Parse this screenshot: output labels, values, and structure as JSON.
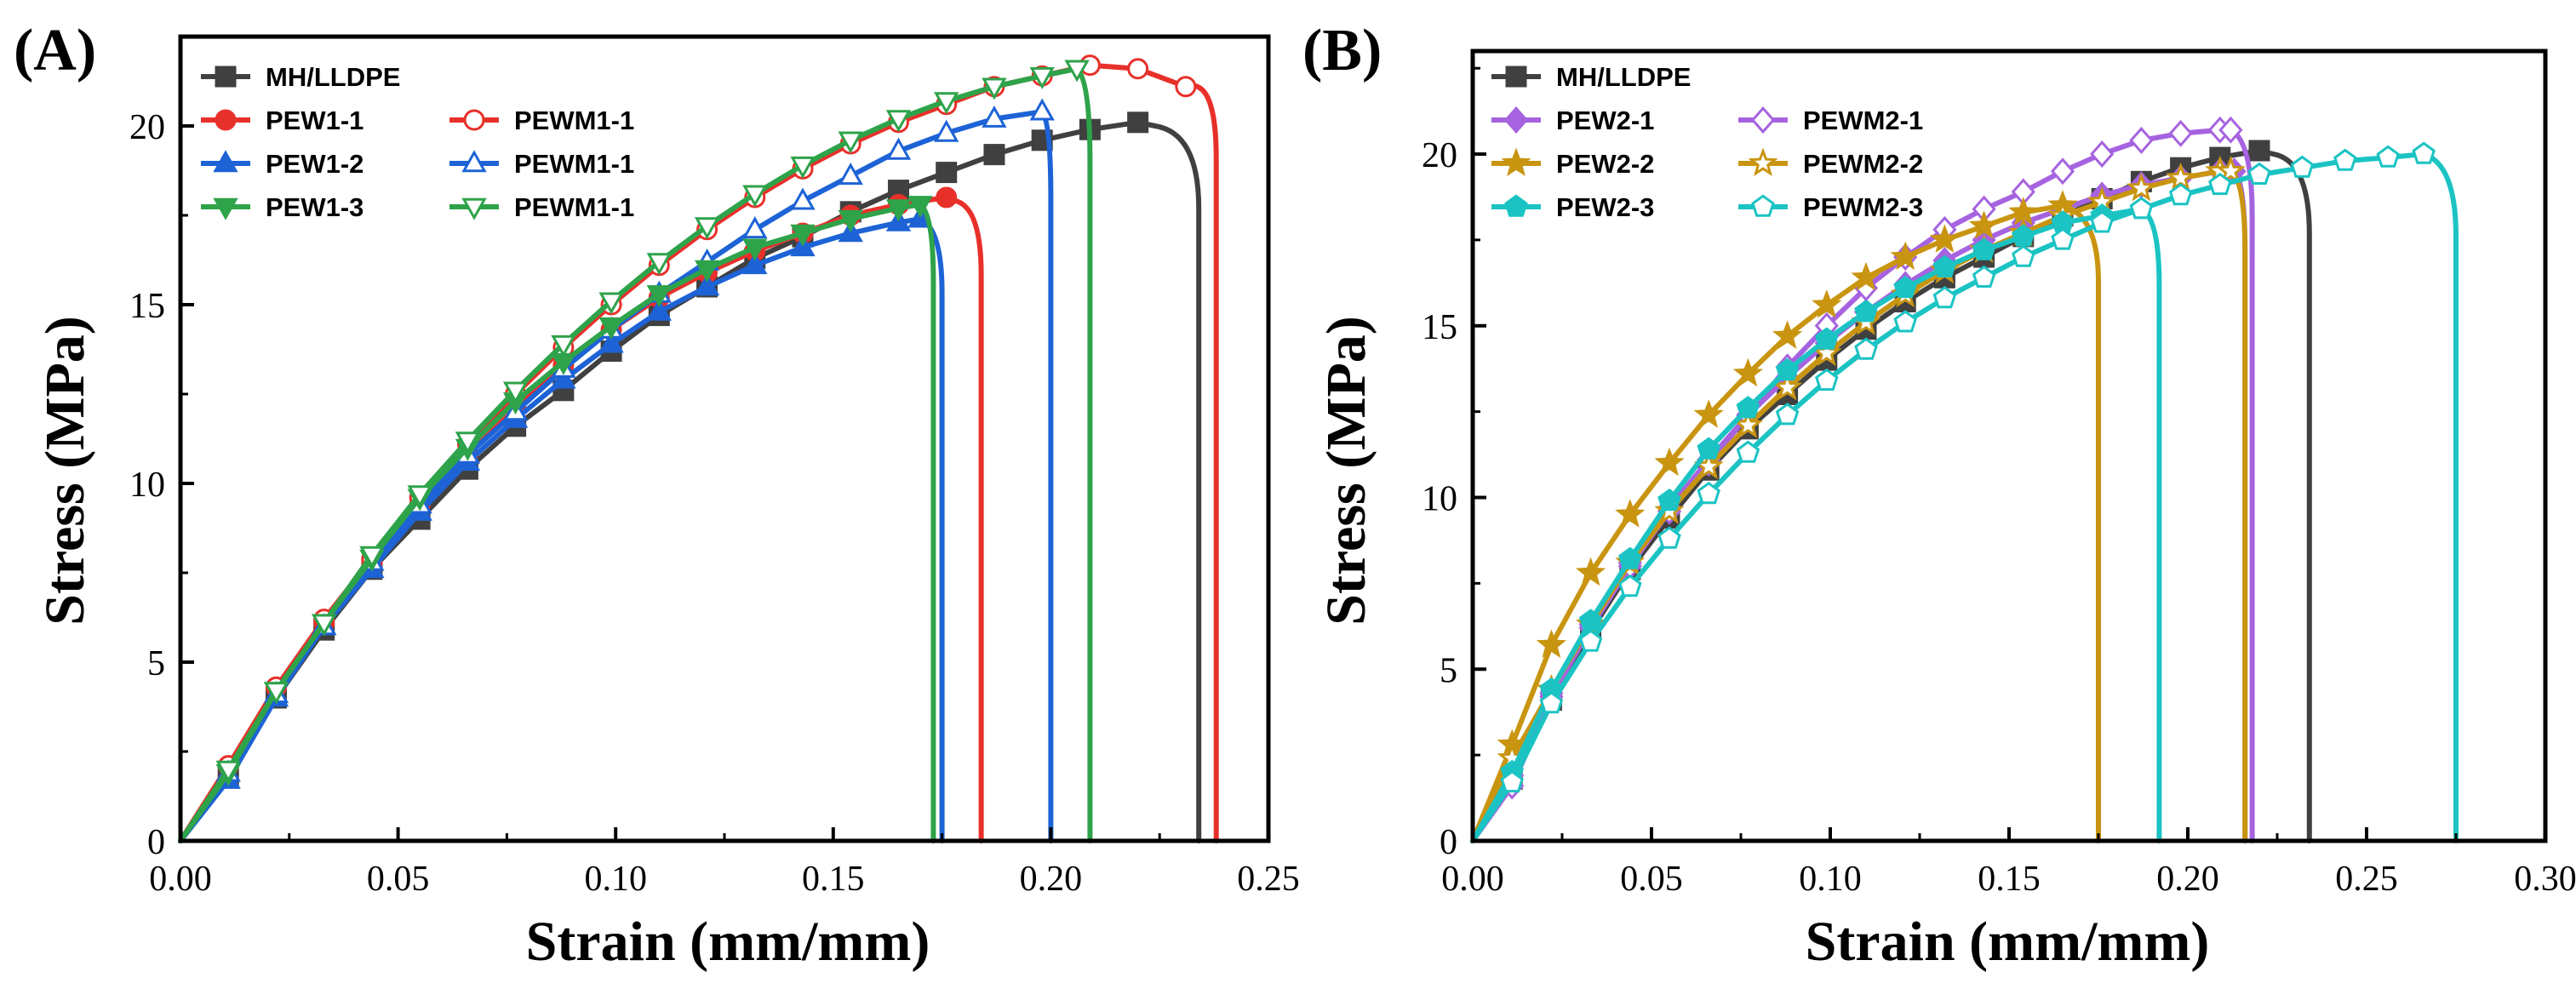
{
  "chart_data": [
    {
      "type": "line",
      "panel_label": "(A)",
      "xlabel": "Strain (mm/mm)",
      "ylabel": "Stress (MPa)",
      "xlim": [
        0,
        0.25
      ],
      "ylim": [
        0,
        22.5
      ],
      "x_ticks": [
        "0.00",
        "0.05",
        "0.10",
        "0.15",
        "0.20",
        "0.25"
      ],
      "y_ticks": [
        "0",
        "5",
        "10",
        "15",
        "20"
      ],
      "x_tick_values": [
        0,
        0.05,
        0.1,
        0.15,
        0.2,
        0.25
      ],
      "y_tick_values": [
        0,
        5,
        10,
        15,
        20
      ],
      "series": [
        {
          "name": "MH/LLDPE",
          "color": "#404040",
          "marker": "square",
          "filled": true,
          "end_strain": 0.224,
          "max_stress": 20.1,
          "break_strain": 0.234,
          "x": [
            0,
            0.011,
            0.022,
            0.033,
            0.044,
            0.055,
            0.066,
            0.077,
            0.088,
            0.099,
            0.11,
            0.121,
            0.132,
            0.143,
            0.154,
            0.165,
            0.176,
            0.187,
            0.198,
            0.209,
            0.22
          ],
          "y": [
            0,
            1.8,
            4.0,
            5.9,
            7.6,
            9.0,
            10.4,
            11.6,
            12.6,
            13.7,
            14.7,
            15.5,
            16.3,
            16.9,
            17.6,
            18.2,
            18.7,
            19.2,
            19.6,
            19.9,
            20.1
          ]
        },
        {
          "name": "PEW1-1",
          "color": "#e8302a",
          "marker": "circle",
          "filled": true,
          "end_strain": 0.178,
          "max_stress": 18.0,
          "break_strain": 0.184,
          "x": [
            0,
            0.011,
            0.022,
            0.033,
            0.044,
            0.055,
            0.066,
            0.077,
            0.088,
            0.099,
            0.11,
            0.121,
            0.132,
            0.143,
            0.154,
            0.165,
            0.176
          ],
          "y": [
            0,
            2.1,
            4.3,
            6.1,
            7.8,
            9.4,
            10.8,
            12.1,
            13.3,
            14.3,
            15.2,
            15.9,
            16.5,
            17.0,
            17.5,
            17.8,
            18.0
          ]
        },
        {
          "name": "PEWM1-1",
          "color": "#e8302a",
          "marker": "circle",
          "filled": false,
          "end_strain": 0.22,
          "max_stress": 21.7,
          "break_strain": 0.238,
          "x": [
            0,
            0.011,
            0.022,
            0.033,
            0.044,
            0.055,
            0.066,
            0.077,
            0.088,
            0.099,
            0.11,
            0.121,
            0.132,
            0.143,
            0.154,
            0.165,
            0.176,
            0.187,
            0.198,
            0.209,
            0.22,
            0.231
          ],
          "y": [
            0,
            2.1,
            4.3,
            6.2,
            7.9,
            9.6,
            11.1,
            12.5,
            13.8,
            15.0,
            16.1,
            17.1,
            18.0,
            18.8,
            19.5,
            20.1,
            20.6,
            21.1,
            21.4,
            21.7,
            21.6,
            21.1
          ]
        },
        {
          "name": "PEW1-2",
          "color": "#1d63d6",
          "marker": "triangle-up",
          "filled": true,
          "end_strain": 0.17,
          "max_stress": 17.4,
          "break_strain": 0.175,
          "x": [
            0,
            0.011,
            0.022,
            0.033,
            0.044,
            0.055,
            0.066,
            0.077,
            0.088,
            0.099,
            0.11,
            0.121,
            0.132,
            0.143,
            0.154,
            0.165,
            0.17
          ],
          "y": [
            0,
            1.7,
            4.0,
            6.0,
            7.6,
            9.2,
            10.6,
            11.8,
            12.9,
            13.9,
            14.8,
            15.5,
            16.1,
            16.6,
            17.0,
            17.3,
            17.4
          ]
        },
        {
          "name": "PEWM1-1",
          "color": "#1d63d6",
          "marker": "triangle-up",
          "filled": false,
          "end_strain": 0.198,
          "max_stress": 20.4,
          "break_strain": 0.2,
          "x": [
            0,
            0.011,
            0.022,
            0.033,
            0.044,
            0.055,
            0.066,
            0.077,
            0.088,
            0.099,
            0.11,
            0.121,
            0.132,
            0.143,
            0.154,
            0.165,
            0.176,
            0.187,
            0.198
          ],
          "y": [
            0,
            1.9,
            4.1,
            6.0,
            7.8,
            9.4,
            10.8,
            12.0,
            13.2,
            14.3,
            15.3,
            16.2,
            17.1,
            17.9,
            18.6,
            19.3,
            19.8,
            20.2,
            20.4
          ]
        },
        {
          "name": "PEW1-3",
          "color": "#2ea34a",
          "marker": "triangle-down",
          "filled": true,
          "end_strain": 0.17,
          "max_stress": 17.8,
          "break_strain": 0.173,
          "x": [
            0,
            0.011,
            0.022,
            0.033,
            0.044,
            0.055,
            0.066,
            0.077,
            0.088,
            0.099,
            0.11,
            0.121,
            0.132,
            0.143,
            0.154,
            0.165,
            0.17
          ],
          "y": [
            0,
            1.9,
            4.2,
            6.1,
            7.9,
            9.6,
            11.0,
            12.3,
            13.4,
            14.4,
            15.3,
            16.0,
            16.6,
            17.0,
            17.4,
            17.7,
            17.8
          ]
        },
        {
          "name": "PEWM1-1",
          "color": "#2ea34a",
          "marker": "triangle-down",
          "filled": false,
          "end_strain": 0.206,
          "max_stress": 21.6,
          "break_strain": 0.209,
          "x": [
            0,
            0.011,
            0.022,
            0.033,
            0.044,
            0.055,
            0.066,
            0.077,
            0.088,
            0.099,
            0.11,
            0.121,
            0.132,
            0.143,
            0.154,
            0.165,
            0.176,
            0.187,
            0.198,
            0.206
          ],
          "y": [
            0,
            2.0,
            4.2,
            6.1,
            8.0,
            9.7,
            11.2,
            12.6,
            13.9,
            15.1,
            16.2,
            17.2,
            18.1,
            18.9,
            19.6,
            20.2,
            20.7,
            21.1,
            21.4,
            21.6
          ]
        }
      ],
      "legend": {
        "placement": "top-left",
        "columns": 2
      }
    },
    {
      "type": "line",
      "panel_label": "(B)",
      "xlabel": "Strain (mm/mm)",
      "ylabel": "Stress (MPa)",
      "xlim": [
        0,
        0.3
      ],
      "ylim": [
        0,
        23
      ],
      "x_ticks": [
        "0.00",
        "0.05",
        "0.10",
        "0.15",
        "0.20",
        "0.25",
        "0.30"
      ],
      "y_ticks": [
        "0",
        "5",
        "10",
        "15",
        "20"
      ],
      "x_tick_values": [
        0,
        0.05,
        0.1,
        0.15,
        0.2,
        0.25,
        0.3
      ],
      "y_tick_values": [
        0,
        5,
        10,
        15,
        20
      ],
      "series": [
        {
          "name": "MH/LLDPE",
          "color": "#404040",
          "marker": "square",
          "filled": true,
          "end_strain": 0.224,
          "max_stress": 20.1,
          "break_strain": 0.234,
          "x": [
            0,
            0.011,
            0.022,
            0.033,
            0.044,
            0.055,
            0.066,
            0.077,
            0.088,
            0.099,
            0.11,
            0.121,
            0.132,
            0.143,
            0.154,
            0.165,
            0.176,
            0.187,
            0.198,
            0.209,
            0.22
          ],
          "y": [
            0,
            1.8,
            4.1,
            6.1,
            7.9,
            9.4,
            10.8,
            12.0,
            13.0,
            14.0,
            14.9,
            15.7,
            16.4,
            17.0,
            17.6,
            18.2,
            18.7,
            19.2,
            19.6,
            19.9,
            20.1
          ]
        },
        {
          "name": "PEW2-1",
          "color": "#a663e0",
          "marker": "diamond",
          "filled": true,
          "end_strain": 0.213,
          "max_stress": 19.5,
          "break_strain": 0.216,
          "x": [
            0,
            0.011,
            0.022,
            0.033,
            0.044,
            0.055,
            0.066,
            0.077,
            0.088,
            0.099,
            0.11,
            0.121,
            0.132,
            0.143,
            0.154,
            0.165,
            0.176,
            0.187,
            0.198,
            0.209,
            0.213
          ],
          "y": [
            0,
            1.9,
            4.3,
            6.3,
            8.1,
            9.7,
            11.1,
            12.4,
            13.5,
            14.5,
            15.4,
            16.2,
            16.9,
            17.5,
            18.0,
            18.4,
            18.8,
            19.1,
            19.3,
            19.5,
            19.5
          ]
        },
        {
          "name": "PEWM2-1",
          "color": "#a663e0",
          "marker": "diamond",
          "filled": false,
          "end_strain": 0.212,
          "max_stress": 20.7,
          "break_strain": 0.218,
          "x": [
            0,
            0.011,
            0.022,
            0.033,
            0.044,
            0.055,
            0.066,
            0.077,
            0.088,
            0.099,
            0.11,
            0.121,
            0.132,
            0.143,
            0.154,
            0.165,
            0.176,
            0.187,
            0.198,
            0.209,
            0.212
          ],
          "y": [
            0,
            1.6,
            4.2,
            6.2,
            8.0,
            9.6,
            11.0,
            12.4,
            13.8,
            15.0,
            16.1,
            17.0,
            17.8,
            18.4,
            18.9,
            19.5,
            20.0,
            20.4,
            20.6,
            20.7,
            20.7
          ]
        },
        {
          "name": "PEW2-2",
          "color": "#c99511",
          "marker": "star",
          "filled": true,
          "end_strain": 0.165,
          "max_stress": 18.5,
          "break_strain": 0.175,
          "x": [
            0,
            0.011,
            0.022,
            0.033,
            0.044,
            0.055,
            0.066,
            0.077,
            0.088,
            0.099,
            0.11,
            0.121,
            0.132,
            0.143,
            0.154,
            0.165
          ],
          "y": [
            0,
            2.8,
            5.7,
            7.8,
            9.5,
            11.0,
            12.4,
            13.6,
            14.7,
            15.6,
            16.4,
            17.0,
            17.5,
            17.9,
            18.3,
            18.5
          ]
        },
        {
          "name": "PEWM2-2",
          "color": "#c99511",
          "marker": "star",
          "filled": false,
          "end_strain": 0.212,
          "max_stress": 19.5,
          "break_strain": 0.216,
          "x": [
            0,
            0.011,
            0.022,
            0.033,
            0.044,
            0.055,
            0.066,
            0.077,
            0.088,
            0.099,
            0.11,
            0.121,
            0.132,
            0.143,
            0.154,
            0.165,
            0.176,
            0.187,
            0.198,
            0.209,
            0.212
          ],
          "y": [
            0,
            2.4,
            4.4,
            6.3,
            8.1,
            9.6,
            10.9,
            12.1,
            13.2,
            14.2,
            15.1,
            15.9,
            16.6,
            17.2,
            17.7,
            18.2,
            18.6,
            19.0,
            19.3,
            19.5,
            19.5
          ]
        },
        {
          "name": "PEW2-3",
          "color": "#1bc3c3",
          "marker": "pentagon",
          "filled": true,
          "end_strain": 0.187,
          "max_stress": 18.4,
          "break_strain": 0.192,
          "x": [
            0,
            0.011,
            0.022,
            0.033,
            0.044,
            0.055,
            0.066,
            0.077,
            0.088,
            0.099,
            0.11,
            0.121,
            0.132,
            0.143,
            0.154,
            0.165,
            0.176,
            0.187
          ],
          "y": [
            0,
            2.0,
            4.4,
            6.4,
            8.2,
            9.9,
            11.4,
            12.6,
            13.7,
            14.6,
            15.4,
            16.1,
            16.7,
            17.2,
            17.6,
            18.0,
            18.2,
            18.4
          ]
        },
        {
          "name": "PEWM2-3",
          "color": "#1bc3c3",
          "marker": "pentagon",
          "filled": false,
          "end_strain": 0.266,
          "max_stress": 20.0,
          "break_strain": 0.275,
          "x": [
            0,
            0.011,
            0.022,
            0.033,
            0.044,
            0.055,
            0.066,
            0.077,
            0.088,
            0.099,
            0.11,
            0.121,
            0.132,
            0.143,
            0.154,
            0.165,
            0.176,
            0.187,
            0.198,
            0.209,
            0.22,
            0.232,
            0.244,
            0.256,
            0.266
          ],
          "y": [
            0,
            1.7,
            4.0,
            5.8,
            7.4,
            8.8,
            10.1,
            11.3,
            12.4,
            13.4,
            14.3,
            15.1,
            15.8,
            16.4,
            17.0,
            17.5,
            18.0,
            18.4,
            18.8,
            19.1,
            19.4,
            19.6,
            19.8,
            19.9,
            20.0
          ]
        }
      ],
      "legend": {
        "placement": "top-left",
        "columns": 2
      }
    }
  ]
}
